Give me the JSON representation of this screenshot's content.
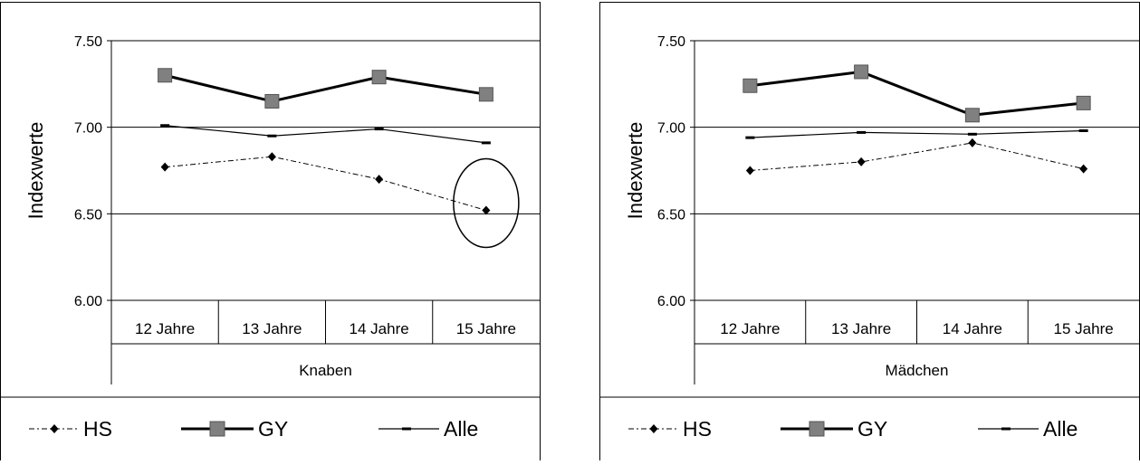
{
  "legend": {
    "items": [
      {
        "label": "HS",
        "style": "dash-dot-diamond"
      },
      {
        "label": "GY",
        "style": "thick-square"
      },
      {
        "label": "Alle",
        "style": "thin-dash-marker"
      }
    ]
  },
  "chart_data": [
    {
      "type": "line",
      "ylabel": "Indexwerte",
      "group_label": "Knaben",
      "categories": [
        "12 Jahre",
        "13 Jahre",
        "14 Jahre",
        "15 Jahre"
      ],
      "ylim": [
        6.0,
        7.5
      ],
      "yticks": [
        "6.00",
        "6.50",
        "7.00",
        "7.50"
      ],
      "grid": true,
      "legend_position": "bottom",
      "highlight_circle": {
        "series": "HS",
        "category": "15 Jahre"
      },
      "series": [
        {
          "name": "HS",
          "values": [
            6.77,
            6.83,
            6.7,
            6.52
          ],
          "color": "#000000"
        },
        {
          "name": "GY",
          "values": [
            7.3,
            7.15,
            7.29,
            7.19
          ],
          "color": "#000000",
          "marker_color": "#808080"
        },
        {
          "name": "Alle",
          "values": [
            7.01,
            6.95,
            6.99,
            6.91
          ],
          "color": "#000000"
        }
      ]
    },
    {
      "type": "line",
      "ylabel": "Indexwerte",
      "group_label": "Mädchen",
      "categories": [
        "12 Jahre",
        "13 Jahre",
        "14 Jahre",
        "15 Jahre"
      ],
      "ylim": [
        6.0,
        7.5
      ],
      "yticks": [
        "6.00",
        "6.50",
        "7.00",
        "7.50"
      ],
      "grid": true,
      "legend_position": "bottom",
      "series": [
        {
          "name": "HS",
          "values": [
            6.75,
            6.8,
            6.91,
            6.76
          ],
          "color": "#000000"
        },
        {
          "name": "GY",
          "values": [
            7.24,
            7.32,
            7.07,
            7.14
          ],
          "color": "#000000",
          "marker_color": "#808080"
        },
        {
          "name": "Alle",
          "values": [
            6.94,
            6.97,
            6.96,
            6.98
          ],
          "color": "#000000"
        }
      ]
    }
  ]
}
